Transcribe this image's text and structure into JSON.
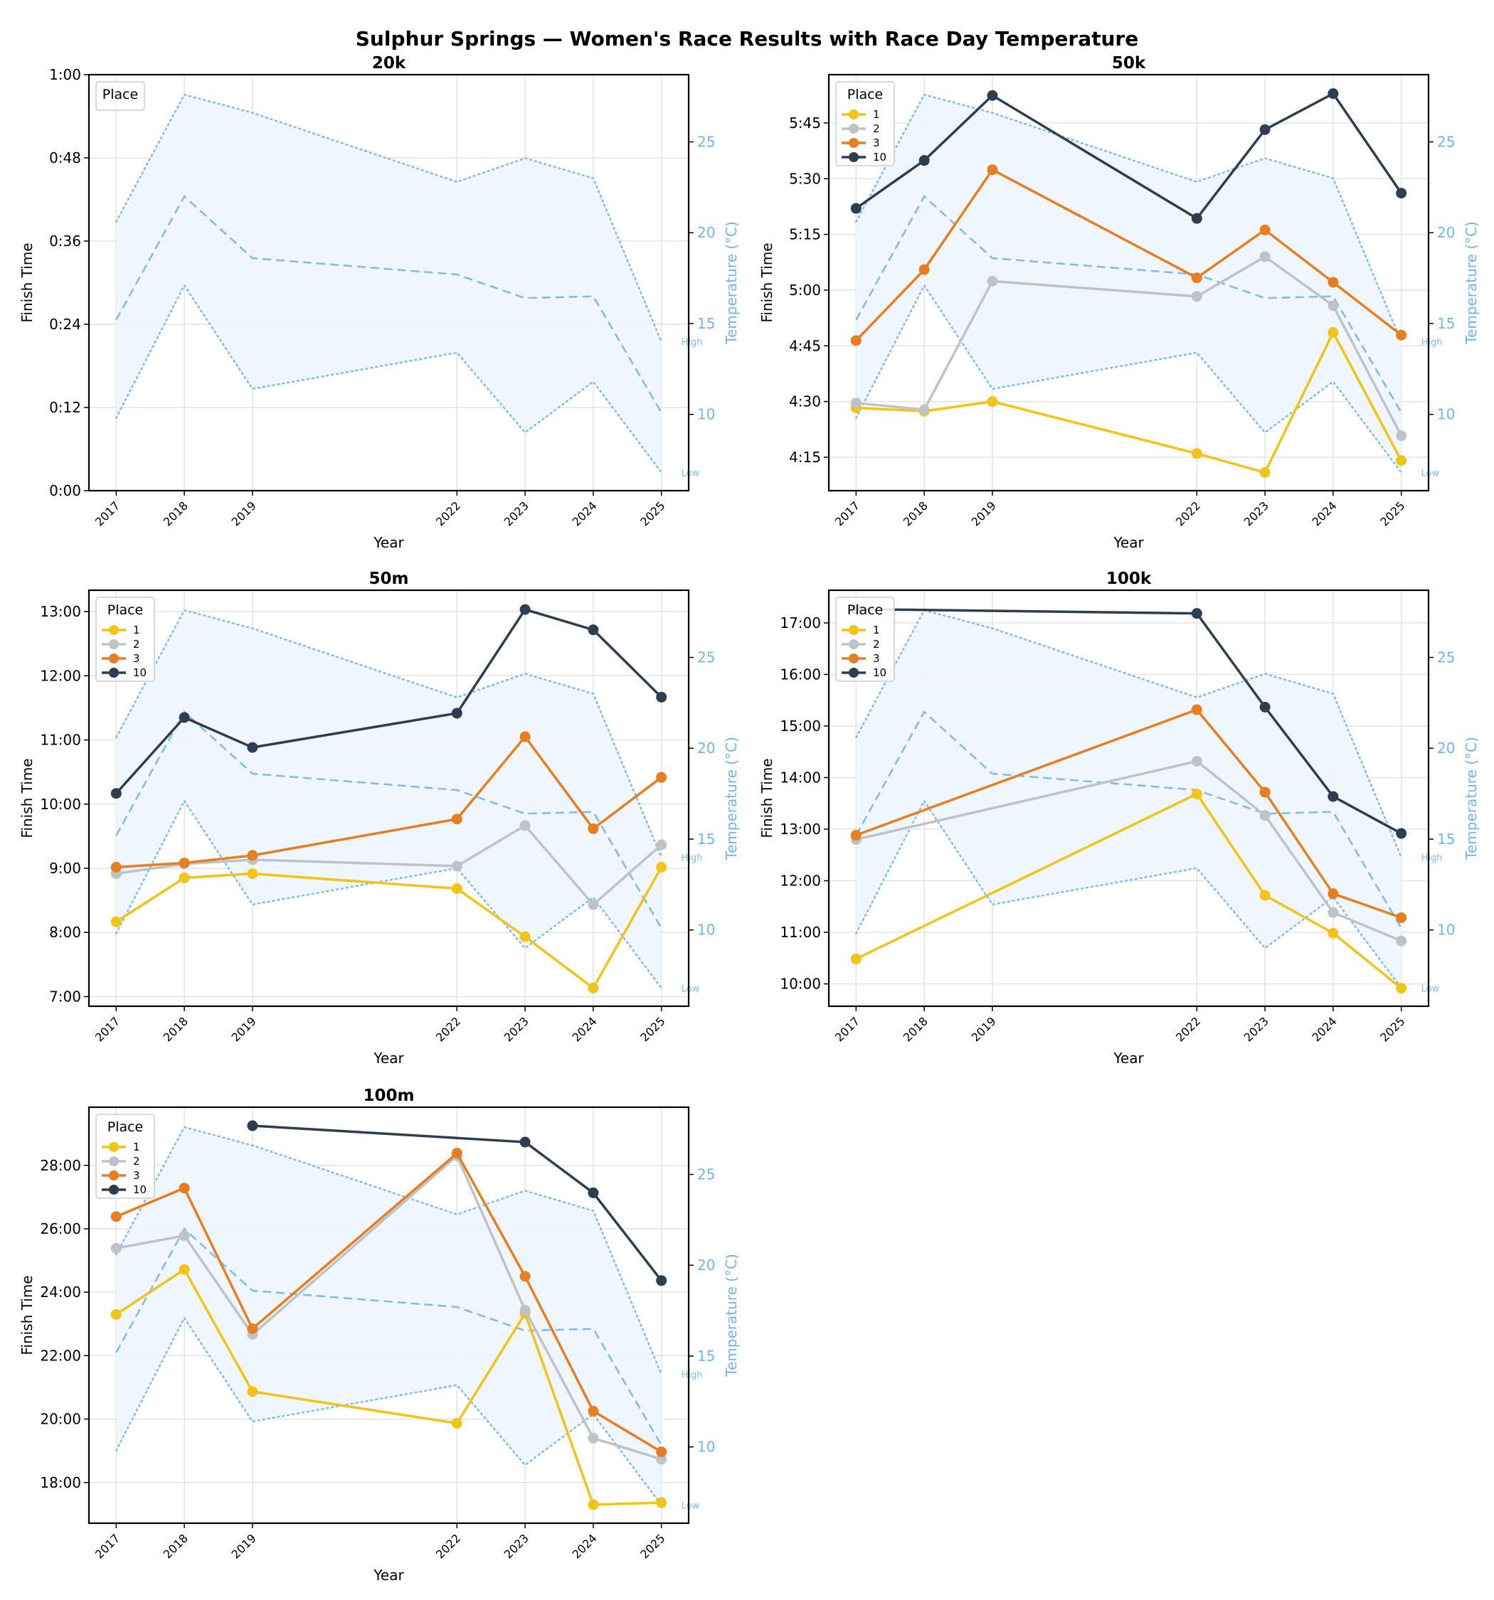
{
  "title": "Sulphur Springs — Women's Race Results with Race Day Temperature",
  "chart_data": {
    "type": "line",
    "title": "Sulphur Springs — Women's Race Results with Race Day Temperature",
    "x_label": "Year",
    "y_label": "Finish Time",
    "y2_label": "Temperature (°C)",
    "years": [
      2017,
      2018,
      2019,
      2022,
      2023,
      2024,
      2025
    ],
    "legend_title": "Place",
    "place_labels": [
      "1",
      "2",
      "3",
      "10"
    ],
    "place_colors": {
      "1": "#f0c419",
      "2": "#bdc3c7",
      "3": "#e67e22",
      "10": "#2c3e50"
    },
    "temperature_color": "#7fbaf0",
    "temperature_fill": "#eef5fd",
    "temperature_labels": {
      "high": "High",
      "low": "Low"
    },
    "temperature": {
      "high": [
        20.6,
        27.6,
        26.6,
        22.8,
        24.1,
        23.0,
        14.0
      ],
      "mean": [
        15.2,
        22.0,
        18.6,
        17.7,
        16.4,
        16.5,
        10.1
      ],
      "low": [
        9.8,
        17.1,
        11.4,
        13.4,
        9.0,
        11.8,
        6.8
      ]
    },
    "temperature_ylim": [
      5.8,
      28.7
    ],
    "temperature_ticks": [
      10,
      15,
      20,
      25
    ],
    "panels": [
      {
        "title": "20k",
        "time_unit": "hours",
        "ylim_minutes": [
          0,
          60
        ],
        "y_ticks_minutes": [
          0,
          12,
          24,
          36,
          48,
          60
        ],
        "y_tick_labels": [
          "0:00",
          "0:12",
          "0:24",
          "0:36",
          "0:48",
          "1:00"
        ],
        "series": []
      },
      {
        "title": "50k",
        "time_unit": "hours",
        "ylim_minutes": [
          246,
          358
        ],
        "y_ticks_minutes": [
          255,
          270,
          285,
          300,
          315,
          330,
          345
        ],
        "y_tick_labels": [
          "4:15",
          "4:30",
          "4:45",
          "5:00",
          "5:15",
          "5:30",
          "5:45"
        ],
        "series": [
          {
            "place": "1",
            "values_minutes": [
              268.3,
              267.4,
              270.0,
              256.0,
              250.9,
              288.6,
              254.1
            ]
          },
          {
            "place": "2",
            "values_minutes": [
              269.6,
              267.8,
              302.4,
              298.3,
              309.0,
              295.8,
              260.8
            ]
          },
          {
            "place": "3",
            "values_minutes": [
              286.4,
              305.5,
              332.4,
              303.3,
              316.2,
              302.1,
              287.9
            ]
          },
          {
            "place": "10",
            "values_minutes": [
              322.0,
              334.9,
              352.4,
              319.3,
              343.2,
              352.9,
              326.1
            ]
          }
        ]
      },
      {
        "title": "50m",
        "time_unit": "hours",
        "ylim_minutes": [
          411,
          800
        ],
        "y_ticks_minutes": [
          420,
          480,
          540,
          600,
          660,
          720,
          780
        ],
        "y_tick_labels": [
          "7:00",
          "8:00",
          "9:00",
          "10:00",
          "11:00",
          "12:00",
          "13:00"
        ],
        "series": [
          {
            "place": "1",
            "values_minutes": [
              490,
              531,
              535,
              521,
              476,
              428,
              541
            ]
          },
          {
            "place": "2",
            "values_minutes": [
              535,
              544,
              548,
              542,
              580,
              506,
              562
            ]
          },
          {
            "place": "3",
            "values_minutes": [
              541,
              545,
              552,
              586,
              663,
              577,
              625
            ]
          },
          {
            "place": "10",
            "values_minutes": [
              610,
              681,
              653,
              685,
              782,
              763,
              700
            ]
          }
        ]
      },
      {
        "title": "100k",
        "time_unit": "hours",
        "ylim_minutes": [
          574,
          1058
        ],
        "y_ticks_minutes": [
          600,
          660,
          720,
          780,
          840,
          900,
          960,
          1020
        ],
        "y_tick_labels": [
          "10:00",
          "11:00",
          "12:00",
          "13:00",
          "14:00",
          "15:00",
          "16:00",
          "17:00"
        ],
        "series": [
          {
            "place": "1",
            "values_minutes": [
              629,
              null,
              null,
              821,
              703,
              659,
              595
            ]
          },
          {
            "place": "2",
            "values_minutes": [
              768,
              null,
              null,
              859,
              796,
              683,
              650
            ]
          },
          {
            "place": "3",
            "values_minutes": [
              773,
              null,
              null,
              919,
              823,
              705,
              677
            ]
          },
          {
            "place": "10",
            "values_minutes": [
              1036,
              null,
              null,
              1031,
              922,
              818,
              775
            ]
          }
        ]
      },
      {
        "title": "100m",
        "time_unit": "hours",
        "ylim_minutes": [
          1003,
          1790
        ],
        "y_ticks_minutes": [
          1080,
          1200,
          1320,
          1440,
          1560,
          1680
        ],
        "y_tick_labels": [
          "18:00",
          "20:00",
          "22:00",
          "24:00",
          "26:00",
          "28:00"
        ],
        "series": [
          {
            "place": "1",
            "values_minutes": [
              1398,
              1483,
              1252,
              1192,
              1400,
              1038,
              1042
            ]
          },
          {
            "place": "2",
            "values_minutes": [
              1523,
              1547,
              1360,
              1698,
              1406,
              1164,
              1124
            ]
          },
          {
            "place": "3",
            "values_minutes": [
              1583,
              1637,
              1371,
              1703,
              1470,
              1215,
              1138
            ]
          },
          {
            "place": "10",
            "values_minutes": [
              null,
              null,
              1755,
              null,
              1724,
              1628,
              1462
            ]
          }
        ]
      }
    ]
  }
}
